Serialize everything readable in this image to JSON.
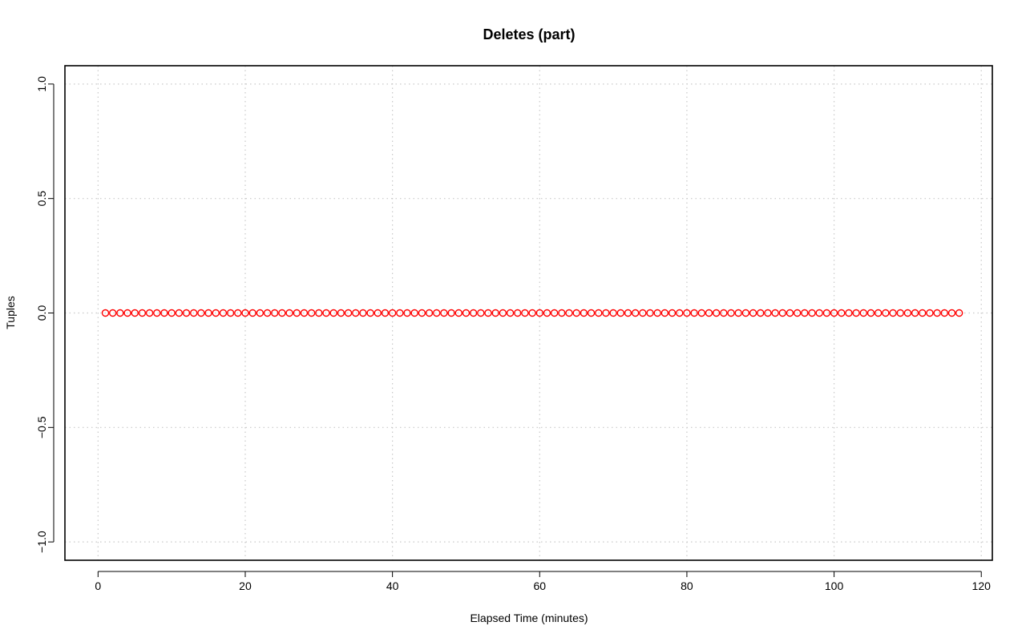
{
  "chart_data": {
    "type": "scatter",
    "title": "Deletes (part)",
    "xlabel": "Elapsed Time (minutes)",
    "ylabel": "Tuples",
    "xlim": [
      -4.5,
      121.5
    ],
    "ylim": [
      -1.08,
      1.08
    ],
    "x_ticks": [
      0,
      20,
      40,
      60,
      80,
      100,
      120
    ],
    "y_ticks": [
      -1.0,
      -0.5,
      0.0,
      0.5,
      1.0
    ],
    "x_tick_labels": [
      "0",
      "20",
      "40",
      "60",
      "80",
      "100",
      "120"
    ],
    "y_tick_labels": [
      "−1.0",
      "−0.5",
      "0.0",
      "0.5",
      "1.0"
    ],
    "grid": true,
    "marker": "open-circle",
    "series": [
      {
        "name": "deletes",
        "color": "#ff0000",
        "x": [
          1,
          2,
          3,
          4,
          5,
          6,
          7,
          8,
          9,
          10,
          11,
          12,
          13,
          14,
          15,
          16,
          17,
          18,
          19,
          20,
          21,
          22,
          23,
          24,
          25,
          26,
          27,
          28,
          29,
          30,
          31,
          32,
          33,
          34,
          35,
          36,
          37,
          38,
          39,
          40,
          41,
          42,
          43,
          44,
          45,
          46,
          47,
          48,
          49,
          50,
          51,
          52,
          53,
          54,
          55,
          56,
          57,
          58,
          59,
          60,
          61,
          62,
          63,
          64,
          65,
          66,
          67,
          68,
          69,
          70,
          71,
          72,
          73,
          74,
          75,
          76,
          77,
          78,
          79,
          80,
          81,
          82,
          83,
          84,
          85,
          86,
          87,
          88,
          89,
          90,
          91,
          92,
          93,
          94,
          95,
          96,
          97,
          98,
          99,
          100,
          101,
          102,
          103,
          104,
          105,
          106,
          107,
          108,
          109,
          110,
          111,
          112,
          113,
          114,
          115,
          116,
          117
        ],
        "y": [
          0,
          0,
          0,
          0,
          0,
          0,
          0,
          0,
          0,
          0,
          0,
          0,
          0,
          0,
          0,
          0,
          0,
          0,
          0,
          0,
          0,
          0,
          0,
          0,
          0,
          0,
          0,
          0,
          0,
          0,
          0,
          0,
          0,
          0,
          0,
          0,
          0,
          0,
          0,
          0,
          0,
          0,
          0,
          0,
          0,
          0,
          0,
          0,
          0,
          0,
          0,
          0,
          0,
          0,
          0,
          0,
          0,
          0,
          0,
          0,
          0,
          0,
          0,
          0,
          0,
          0,
          0,
          0,
          0,
          0,
          0,
          0,
          0,
          0,
          0,
          0,
          0,
          0,
          0,
          0,
          0,
          0,
          0,
          0,
          0,
          0,
          0,
          0,
          0,
          0,
          0,
          0,
          0,
          0,
          0,
          0,
          0,
          0,
          0,
          0,
          0,
          0,
          0,
          0,
          0,
          0,
          0,
          0,
          0,
          0,
          0,
          0,
          0,
          0,
          0,
          0,
          0
        ]
      }
    ]
  }
}
